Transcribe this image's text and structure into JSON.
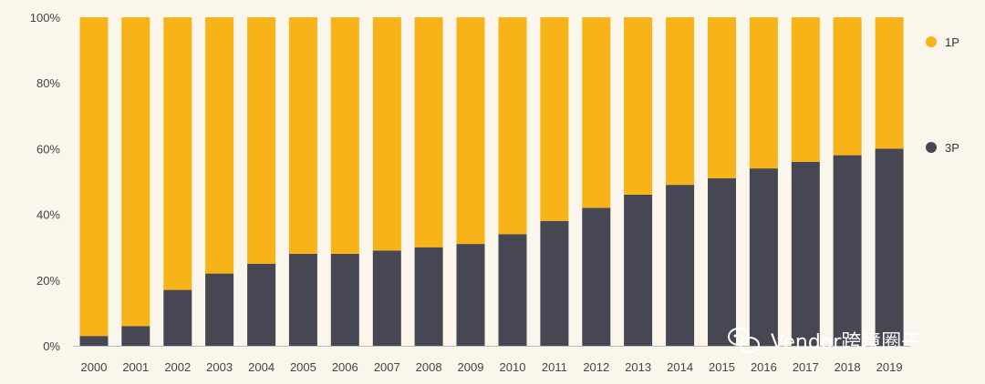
{
  "chart_data": {
    "type": "bar",
    "stacked": true,
    "categories": [
      "2000",
      "2001",
      "2002",
      "2003",
      "2004",
      "2005",
      "2006",
      "2007",
      "2008",
      "2009",
      "2010",
      "2011",
      "2012",
      "2013",
      "2014",
      "2015",
      "2016",
      "2017",
      "2018",
      "2019"
    ],
    "series": [
      {
        "name": "3P",
        "values": [
          3,
          6,
          17,
          22,
          25,
          28,
          28,
          29,
          30,
          31,
          34,
          38,
          42,
          46,
          49,
          51,
          54,
          56,
          58,
          60
        ]
      },
      {
        "name": "1P",
        "values": [
          97,
          94,
          83,
          78,
          75,
          72,
          72,
          71,
          70,
          69,
          66,
          62,
          58,
          54,
          51,
          49,
          46,
          44,
          42,
          40
        ]
      }
    ],
    "ylim": [
      0,
      100
    ],
    "yticks": [
      "0%",
      "20%",
      "40%",
      "60%",
      "80%",
      "100%"
    ],
    "grid": false,
    "legend_position": "right",
    "legend": [
      {
        "name": "1P",
        "color": "#f7b318"
      },
      {
        "name": "3P",
        "color": "#464752"
      }
    ],
    "colors": {
      "1P": "#f7b318",
      "3P": "#464752",
      "axis": "#bbbbbb",
      "background": "#fbf6ec"
    }
  },
  "watermark": {
    "text": "Vendor跨境圈子",
    "icon": "wechat-icon"
  }
}
